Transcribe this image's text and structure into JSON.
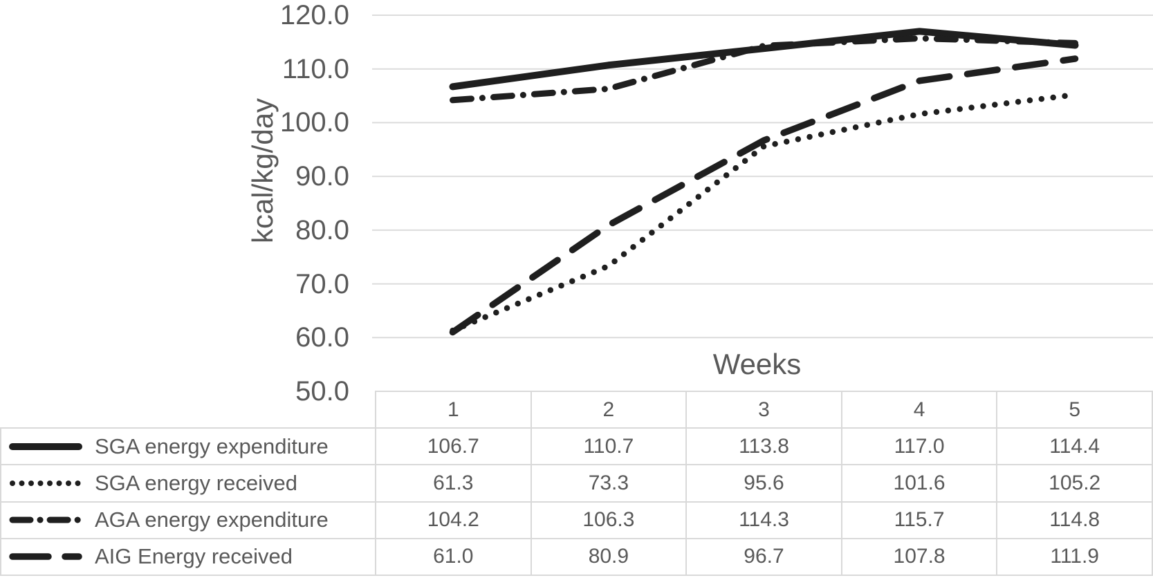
{
  "chart_data": {
    "type": "line",
    "title": "",
    "xlabel": "Weeks",
    "ylabel": "kcal/kg/day",
    "categories": [
      "1",
      "2",
      "3",
      "4",
      "5"
    ],
    "series": [
      {
        "name": "SGA energy expenditure",
        "line_style": "solid",
        "values": [
          106.7,
          110.7,
          113.8,
          117.0,
          114.4
        ]
      },
      {
        "name": "SGA energy received",
        "line_style": "dotted",
        "values": [
          61.3,
          73.3,
          95.6,
          101.6,
          105.2
        ]
      },
      {
        "name": "AGA energy expenditure",
        "line_style": "dashdot",
        "values": [
          104.2,
          106.3,
          114.3,
          115.7,
          114.8
        ]
      },
      {
        "name": "AIG Energy received",
        "line_style": "dashed",
        "values": [
          61.0,
          80.9,
          96.7,
          107.8,
          111.9
        ]
      }
    ],
    "ylim": [
      50,
      120
    ],
    "ytick_step": 10,
    "yticks": [
      "120.0",
      "110.0",
      "100.0",
      "90.0",
      "80.0",
      "70.0",
      "60.0",
      "50.0"
    ],
    "grid": "horizontal",
    "legend_position": "table-left",
    "value_decimals": 1,
    "colors": {
      "line": "#1f1f1f",
      "grid": "#dcdcdc",
      "text": "#595959",
      "table_border": "#d9d9d9",
      "background": "#ffffff"
    }
  }
}
